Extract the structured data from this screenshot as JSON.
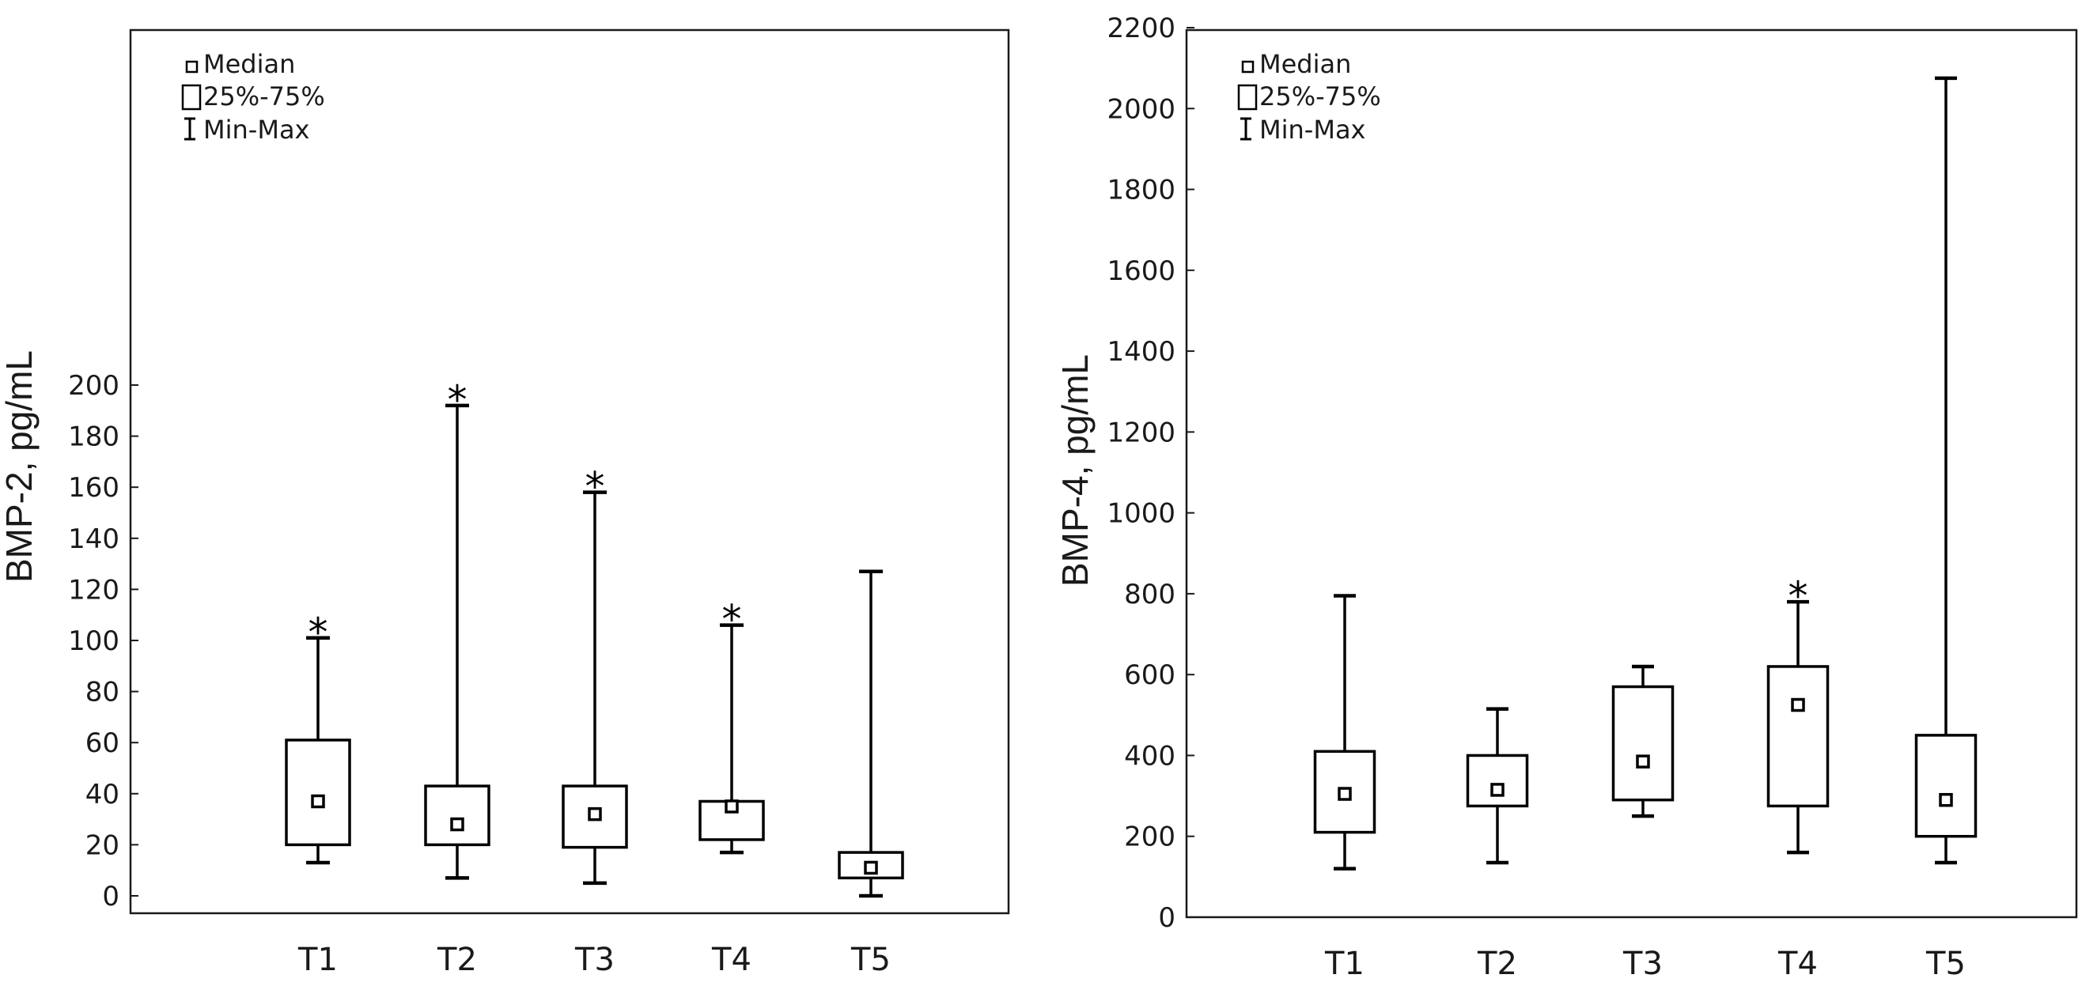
{
  "chart_data": [
    {
      "type": "boxplot",
      "ylabel": "BMP-2, pg/mL",
      "ylim": [
        0,
        200
      ],
      "yticks": [
        "0",
        "20",
        "40",
        "60",
        "80",
        "100",
        "120",
        "140",
        "160",
        "180",
        "200"
      ],
      "categories": [
        "T1",
        "T2",
        "T3",
        "T4",
        "T5"
      ],
      "legend": {
        "position": "top-left",
        "median": "Median",
        "box": "25%-75%",
        "whisker": "Min-Max"
      },
      "significance_marker": "*",
      "boxes": [
        {
          "name": "T1",
          "min": 13,
          "q1": 20,
          "median": 37,
          "q3": 61,
          "max": 101,
          "significant": true
        },
        {
          "name": "T2",
          "min": 7,
          "q1": 20,
          "median": 28,
          "q3": 43,
          "max": 192,
          "significant": true
        },
        {
          "name": "T3",
          "min": 5,
          "q1": 19,
          "median": 32,
          "q3": 43,
          "max": 158,
          "significant": true
        },
        {
          "name": "T4",
          "min": 17,
          "q1": 22,
          "median": 35,
          "q3": 37,
          "max": 106,
          "significant": true
        },
        {
          "name": "T5",
          "min": 0,
          "q1": 7,
          "median": 11,
          "q3": 17,
          "max": 127,
          "significant": false
        }
      ]
    },
    {
      "type": "boxplot",
      "ylabel": "BMP-4, pg/mL",
      "ylim": [
        0,
        2200
      ],
      "yticks": [
        "0",
        "200",
        "400",
        "600",
        "800",
        "1000",
        "1200",
        "1400",
        "1600",
        "1800",
        "2000",
        "2200"
      ],
      "categories": [
        "T1",
        "T2",
        "T3",
        "T4",
        "T5"
      ],
      "legend": {
        "position": "top-left",
        "median": "Median",
        "box": "25%-75%",
        "whisker": "Min-Max"
      },
      "significance_marker": "*",
      "boxes": [
        {
          "name": "T1",
          "min": 120,
          "q1": 210,
          "median": 305,
          "q3": 410,
          "max": 795,
          "significant": false
        },
        {
          "name": "T2",
          "min": 135,
          "q1": 275,
          "median": 315,
          "q3": 400,
          "max": 515,
          "significant": false
        },
        {
          "name": "T3",
          "min": 250,
          "q1": 290,
          "median": 385,
          "q3": 570,
          "max": 620,
          "significant": false
        },
        {
          "name": "T4",
          "min": 160,
          "q1": 275,
          "median": 525,
          "q3": 620,
          "max": 780,
          "significant": true
        },
        {
          "name": "T5",
          "min": 135,
          "q1": 200,
          "median": 290,
          "q3": 450,
          "max": 2075,
          "significant": false
        }
      ]
    }
  ]
}
